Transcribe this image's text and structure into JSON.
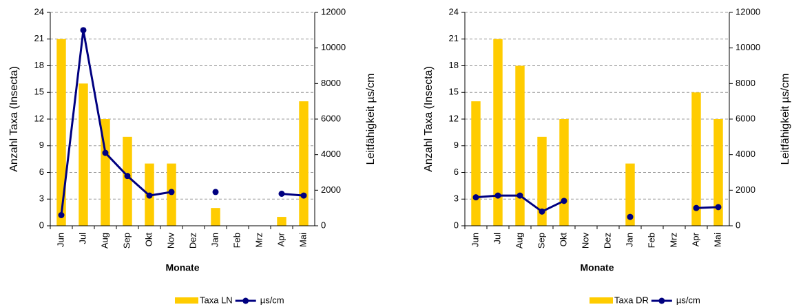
{
  "chart_data": [
    {
      "type": "combo",
      "x_label": "Monate",
      "y_label": "Anzahl Taxa (Insecta)",
      "y2_label": "Leitfähigkeit µs/cm",
      "categories": [
        "Jun",
        "Jul",
        "Aug",
        "Sep",
        "Okt",
        "Nov",
        "Dez",
        "Jan",
        "Feb",
        "Mrz",
        "Apr",
        "Mai"
      ],
      "series": [
        {
          "name": "Taxa LN",
          "type": "bar",
          "color": "#ffcc00",
          "values": [
            21,
            16,
            12,
            10,
            7,
            7,
            null,
            2,
            null,
            null,
            1,
            14
          ]
        },
        {
          "name": "µs/cm",
          "type": "line",
          "axis": "y2",
          "color": "#000080",
          "values": [
            600,
            11000,
            4100,
            2800,
            1700,
            1900,
            null,
            1900,
            null,
            null,
            1800,
            1700
          ]
        }
      ],
      "ylim": [
        0,
        24
      ],
      "yticks": [
        0,
        3,
        6,
        9,
        12,
        15,
        18,
        21,
        24
      ],
      "y2lim": [
        0,
        12000
      ],
      "y2ticks": [
        0,
        2000,
        4000,
        6000,
        8000,
        10000,
        12000
      ],
      "grid": true,
      "legend": "bottom"
    },
    {
      "type": "combo",
      "x_label": "Monate",
      "y_label": "Anzahl Taxa (Insecta)",
      "y2_label": "Leitfähigkeit µs/cm",
      "categories": [
        "Jun",
        "Jul",
        "Aug",
        "Sep",
        "Okt",
        "Nov",
        "Dez",
        "Jan",
        "Feb",
        "Mrz",
        "Apr",
        "Mai"
      ],
      "series": [
        {
          "name": "Taxa DR",
          "type": "bar",
          "color": "#ffcc00",
          "values": [
            14,
            21,
            18,
            10,
            12,
            null,
            null,
            7,
            null,
            null,
            15,
            12
          ]
        },
        {
          "name": "µs/cm",
          "type": "line",
          "axis": "y2",
          "color": "#000080",
          "values": [
            1600,
            1700,
            1700,
            800,
            1400,
            null,
            null,
            500,
            null,
            null,
            1000,
            1050
          ]
        }
      ],
      "ylim": [
        0,
        24
      ],
      "yticks": [
        0,
        3,
        6,
        9,
        12,
        15,
        18,
        21,
        24
      ],
      "y2lim": [
        0,
        12000
      ],
      "y2ticks": [
        0,
        2000,
        4000,
        6000,
        8000,
        10000,
        12000
      ],
      "grid": true,
      "legend": "bottom"
    }
  ]
}
